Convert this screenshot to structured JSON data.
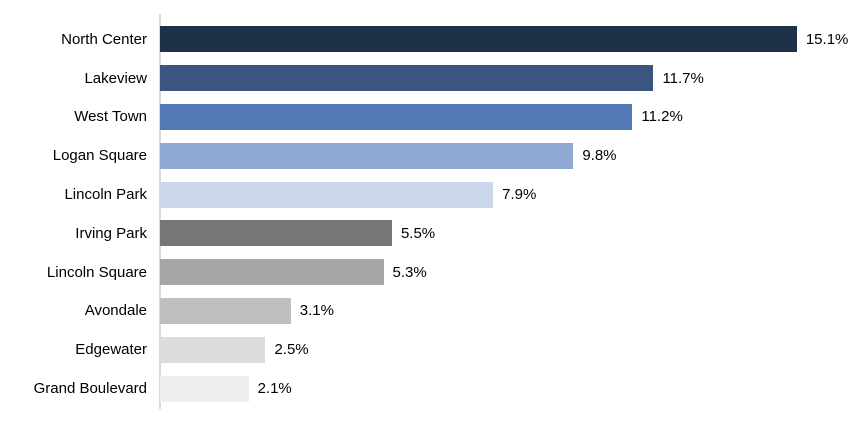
{
  "chart_data": {
    "type": "bar",
    "orientation": "horizontal",
    "title": "",
    "xlabel": "",
    "ylabel": "",
    "grid": false,
    "legend": false,
    "xlim": [
      0,
      16.55
    ],
    "categories": [
      "North Center",
      "Lakeview",
      "West Town",
      "Logan Square",
      "Lincoln Park",
      "Irving Park",
      "Lincoln Square",
      "Avondale",
      "Edgewater",
      "Grand Boulevard"
    ],
    "values": [
      15.1,
      11.7,
      11.2,
      9.8,
      7.9,
      5.5,
      5.3,
      3.1,
      2.5,
      2.1
    ],
    "value_labels": [
      "15.1%",
      "11.7%",
      "11.2%",
      "9.8%",
      "7.9%",
      "5.5%",
      "5.3%",
      "3.1%",
      "2.5%",
      "2.1%"
    ],
    "bar_colors": [
      "#1F3149",
      "#3A5680",
      "#5379B5",
      "#8FA9D3",
      "#CAD6EA",
      "#767676",
      "#A6A6A6",
      "#BFBFBF",
      "#DCDCDC",
      "#EFEFEF"
    ],
    "colors": {
      "axis_line": "#D9D9D9",
      "text": "#000000",
      "background": "#FFFFFF"
    }
  }
}
